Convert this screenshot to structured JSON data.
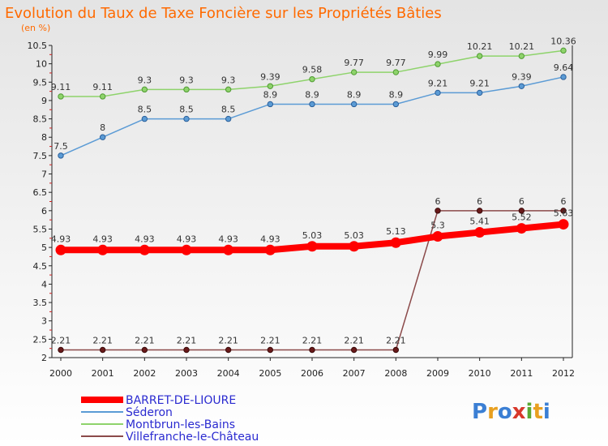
{
  "chart_data": {
    "type": "line",
    "title": "Evolution du Taux de Taxe Foncière sur les Propriétés Bâties",
    "subtitle": "(en %)",
    "x": [
      "2000",
      "2001",
      "2002",
      "2003",
      "2004",
      "2005",
      "2006",
      "2007",
      "2008",
      "2009",
      "2010",
      "2011",
      "2012"
    ],
    "ylim": [
      2,
      10.5
    ],
    "yticks": [
      "2",
      "2.5",
      "3",
      "3.5",
      "4",
      "4.5",
      "5",
      "5.5",
      "6",
      "6.5",
      "7",
      "7.5",
      "8",
      "8.5",
      "9",
      "9.5",
      "10",
      "10.5"
    ],
    "grid": false,
    "legend_position": "bottom-left",
    "series": [
      {
        "name": "BARRET-DE-LIOURE",
        "color": "#ff0000",
        "values": [
          4.93,
          4.93,
          4.93,
          4.93,
          4.93,
          4.93,
          5.03,
          5.03,
          5.13,
          5.3,
          5.41,
          5.52,
          5.63
        ],
        "labels": [
          "4.93",
          "4.93",
          "4.93",
          "4.93",
          "4.93",
          "4.93",
          "5.03",
          "5.03",
          "5.13",
          "5.3",
          "5.41",
          "5.52",
          "5.63"
        ]
      },
      {
        "name": "Séderon",
        "color": "#5b9bd5",
        "values": [
          7.5,
          8,
          8.5,
          8.5,
          8.5,
          8.9,
          8.9,
          8.9,
          8.9,
          9.21,
          9.21,
          9.39,
          9.64
        ],
        "labels": [
          "7.5",
          "8",
          "8.5",
          "8.5",
          "8.5",
          "8.9",
          "8.9",
          "8.9",
          "8.9",
          "9.21",
          "9.21",
          "9.39",
          "9.64"
        ]
      },
      {
        "name": "Montbrun-les-Bains",
        "color": "#8ed36b",
        "values": [
          9.11,
          9.11,
          9.3,
          9.3,
          9.3,
          9.39,
          9.58,
          9.77,
          9.77,
          9.99,
          10.21,
          10.21,
          10.36
        ],
        "labels": [
          "9.11",
          "9.11",
          "9.3",
          "9.3",
          "9.3",
          "9.39",
          "9.58",
          "9.77",
          "9.77",
          "9.99",
          "10.21",
          "10.21",
          "10.36"
        ]
      },
      {
        "name": "Villefranche-le-Château",
        "color": "#8b4a4a",
        "values": [
          2.21,
          2.21,
          2.21,
          2.21,
          2.21,
          2.21,
          2.21,
          2.21,
          2.21,
          6,
          6,
          6,
          6
        ],
        "labels": [
          "2.21",
          "2.21",
          "2.21",
          "2.21",
          "2.21",
          "2.21",
          "2.21",
          "2.21",
          "2.21",
          "6",
          "6",
          "6",
          "6"
        ]
      }
    ]
  },
  "logo": {
    "text": "Proxiti"
  }
}
